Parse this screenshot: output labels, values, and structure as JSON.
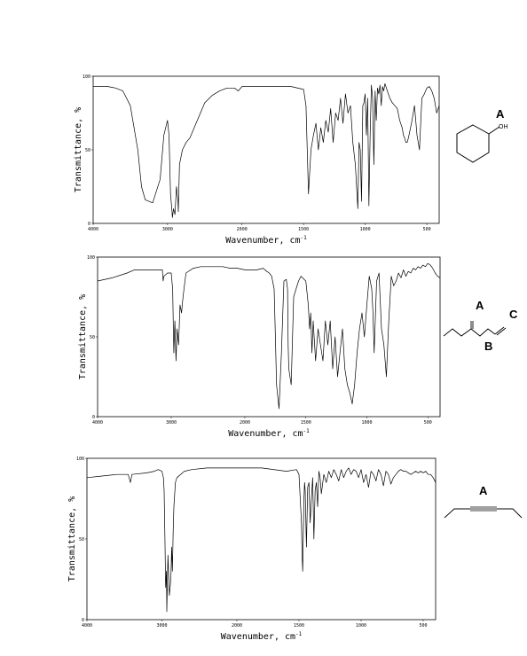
{
  "chart_data": [
    {
      "type": "line",
      "xlabel": "Wavenumber, cm",
      "xlabel_superscript": "-1",
      "ylabel": "Transmittance, %",
      "xlim": [
        4000,
        400
      ],
      "ylim": [
        0,
        100
      ],
      "x_ticks": [
        "4000",
        "3000",
        "2000",
        "1500",
        "1000",
        "500"
      ],
      "y_ticks": [
        "0",
        "50",
        "100"
      ],
      "structure_labels": [
        "A"
      ],
      "structure_text": [
        "OH"
      ],
      "series": [
        {
          "x": [
            4000,
            3800,
            3700,
            3600,
            3500,
            3400,
            3350,
            3300,
            3200,
            3100,
            3050,
            3000,
            2980,
            2960,
            2940,
            2935,
            2920,
            2900,
            2880,
            2860,
            2855,
            2840,
            2800,
            2750,
            2700,
            2600,
            2500,
            2400,
            2300,
            2200,
            2100,
            2050,
            2000,
            1800,
            1600,
            1500,
            1480,
            1470,
            1460,
            1450,
            1440,
            1420,
            1400,
            1380,
            1360,
            1340,
            1320,
            1300,
            1280,
            1260,
            1240,
            1220,
            1200,
            1180,
            1160,
            1140,
            1120,
            1100,
            1080,
            1070,
            1060,
            1050,
            1040,
            1030,
            1020,
            1010,
            1000,
            990,
            980,
            970,
            960,
            950,
            940,
            930,
            920,
            910,
            900,
            890,
            880,
            870,
            860,
            850,
            840,
            820,
            800,
            780,
            760,
            740,
            720,
            700,
            690,
            680,
            670,
            660,
            650,
            640,
            620,
            600,
            580,
            560,
            540,
            520,
            500,
            480,
            460,
            440,
            420,
            400
          ],
          "y": [
            93,
            93,
            92,
            90,
            80,
            50,
            25,
            16,
            14,
            30,
            60,
            70,
            60,
            20,
            8,
            4,
            10,
            6,
            25,
            15,
            8,
            40,
            50,
            55,
            58,
            70,
            82,
            87,
            90,
            92,
            92,
            90,
            93,
            93,
            93,
            91,
            80,
            50,
            20,
            35,
            50,
            60,
            68,
            50,
            65,
            55,
            70,
            62,
            78,
            55,
            75,
            70,
            85,
            68,
            88,
            75,
            80,
            55,
            40,
            25,
            10,
            55,
            50,
            15,
            80,
            82,
            88,
            60,
            85,
            12,
            60,
            94,
            85,
            40,
            90,
            70,
            92,
            88,
            94,
            80,
            93,
            90,
            95,
            90,
            85,
            82,
            80,
            78,
            70,
            65,
            60,
            58,
            55,
            55,
            58,
            62,
            70,
            80,
            60,
            50,
            85,
            88,
            92,
            93,
            90,
            85,
            75,
            80
          ]
        }
      ]
    },
    {
      "type": "line",
      "xlabel": "Wavenumber, cm",
      "xlabel_superscript": "-1",
      "ylabel": "Transmittance, %",
      "xlim": [
        4000,
        400
      ],
      "ylim": [
        0,
        100
      ],
      "x_ticks": [
        "4000",
        "3000",
        "2000",
        "1500",
        "1000",
        "500"
      ],
      "y_ticks": [
        "0",
        "50",
        "100"
      ],
      "structure_labels": [
        "A",
        "B",
        "C"
      ],
      "series": [
        {
          "x": [
            4000,
            3800,
            3600,
            3500,
            3400,
            3300,
            3200,
            3120,
            3110,
            3100,
            3050,
            3000,
            2980,
            2965,
            2950,
            2935,
            2920,
            2900,
            2880,
            2860,
            2840,
            2800,
            2700,
            2600,
            2500,
            2400,
            2300,
            2200,
            2100,
            2000,
            1900,
            1850,
            1820,
            1800,
            1780,
            1760,
            1750,
            1740,
            1720,
            1700,
            1680,
            1660,
            1650,
            1645,
            1640,
            1620,
            1600,
            1580,
            1560,
            1540,
            1500,
            1480,
            1470,
            1460,
            1450,
            1440,
            1420,
            1400,
            1380,
            1360,
            1340,
            1320,
            1300,
            1280,
            1260,
            1240,
            1220,
            1200,
            1180,
            1160,
            1140,
            1120,
            1100,
            1080,
            1060,
            1040,
            1020,
            1000,
            980,
            960,
            950,
            940,
            920,
            900,
            880,
            860,
            840,
            820,
            800,
            780,
            760,
            740,
            720,
            700,
            680,
            660,
            640,
            620,
            600,
            580,
            560,
            540,
            520,
            500,
            480,
            460,
            440,
            420,
            400
          ],
          "y": [
            85,
            87,
            90,
            92,
            92,
            92,
            92,
            92,
            85,
            88,
            90,
            90,
            80,
            40,
            60,
            35,
            55,
            45,
            70,
            65,
            75,
            90,
            93,
            94,
            94,
            94,
            94,
            93,
            93,
            92,
            92,
            93,
            91,
            90,
            88,
            80,
            50,
            20,
            5,
            40,
            85,
            86,
            80,
            45,
            30,
            20,
            75,
            80,
            85,
            88,
            85,
            70,
            55,
            65,
            40,
            60,
            35,
            55,
            45,
            35,
            60,
            45,
            60,
            30,
            50,
            25,
            40,
            55,
            30,
            20,
            15,
            8,
            20,
            40,
            55,
            65,
            50,
            70,
            88,
            80,
            65,
            40,
            85,
            90,
            55,
            45,
            25,
            60,
            88,
            82,
            85,
            90,
            87,
            92,
            88,
            91,
            90,
            93,
            92,
            94,
            93,
            95,
            94,
            96,
            95,
            93,
            90,
            88,
            87
          ]
        }
      ]
    },
    {
      "type": "line",
      "xlabel": "Wavenumber, cm",
      "xlabel_superscript": "-1",
      "ylabel": "Transmittance, %",
      "xlim": [
        4000,
        400
      ],
      "ylim": [
        0,
        100
      ],
      "x_ticks": [
        "4000",
        "3000",
        "2000",
        "1500",
        "1000",
        "500"
      ],
      "y_ticks": [
        "0",
        "50",
        "100"
      ],
      "structure_labels": [
        "A"
      ],
      "series": [
        {
          "x": [
            4000,
            3800,
            3600,
            3450,
            3420,
            3400,
            3200,
            3100,
            3050,
            3000,
            2980,
            2970,
            2960,
            2950,
            2940,
            2935,
            2920,
            2900,
            2880,
            2870,
            2860,
            2850,
            2840,
            2820,
            2800,
            2700,
            2600,
            2400,
            2200,
            2000,
            1800,
            1600,
            1520,
            1500,
            1480,
            1475,
            1470,
            1465,
            1460,
            1455,
            1450,
            1440,
            1430,
            1420,
            1410,
            1400,
            1390,
            1380,
            1370,
            1360,
            1350,
            1340,
            1330,
            1320,
            1300,
            1280,
            1260,
            1240,
            1220,
            1200,
            1180,
            1160,
            1140,
            1120,
            1100,
            1080,
            1060,
            1040,
            1020,
            1000,
            980,
            960,
            940,
            920,
            900,
            880,
            860,
            840,
            820,
            800,
            780,
            760,
            740,
            720,
            700,
            680,
            660,
            640,
            620,
            600,
            580,
            560,
            540,
            520,
            500,
            480,
            460,
            440,
            420,
            400
          ],
          "y": [
            88,
            89,
            90,
            90,
            85,
            90,
            91,
            92,
            93,
            92,
            88,
            80,
            50,
            20,
            30,
            5,
            40,
            15,
            25,
            45,
            30,
            55,
            70,
            85,
            88,
            92,
            93,
            94,
            94,
            94,
            94,
            92,
            93,
            90,
            60,
            40,
            30,
            55,
            75,
            85,
            80,
            45,
            82,
            85,
            60,
            75,
            88,
            50,
            80,
            85,
            70,
            92,
            88,
            78,
            90,
            85,
            92,
            88,
            93,
            90,
            86,
            93,
            88,
            92,
            94,
            90,
            93,
            92,
            88,
            93,
            85,
            90,
            82,
            92,
            90,
            86,
            93,
            90,
            83,
            92,
            90,
            84,
            88,
            90,
            92,
            93,
            92,
            92,
            91,
            90,
            91,
            92,
            91,
            92,
            91,
            92,
            90,
            90,
            88,
            85
          ]
        }
      ]
    }
  ]
}
